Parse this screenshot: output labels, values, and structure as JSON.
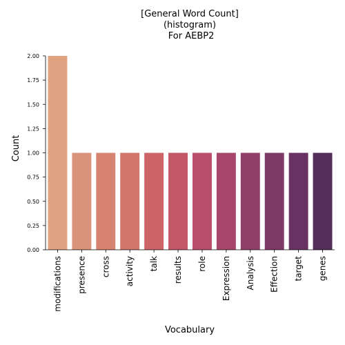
{
  "chart_data": {
    "type": "bar",
    "title_lines": [
      "[General Word Count]",
      "(histogram)",
      " For AEBP2"
    ],
    "xlabel": "Vocabulary",
    "ylabel": "Count",
    "categories": [
      "modifications",
      "presence",
      "cross",
      "activity",
      "talk",
      "results",
      "role",
      "Expression",
      "Analysis",
      "Effection",
      "target",
      "genes"
    ],
    "values": [
      2,
      1,
      1,
      1,
      1,
      1,
      1,
      1,
      1,
      1,
      1,
      1
    ],
    "ylim": [
      0,
      2
    ],
    "yticks": [
      "0.00",
      "0.25",
      "0.50",
      "0.75",
      "1.00",
      "1.25",
      "1.50",
      "1.75",
      "2.00"
    ],
    "colors": [
      "#e0a281",
      "#d9937a",
      "#d68471",
      "#d2766c",
      "#cc6468",
      "#c25767",
      "#b84e6a",
      "#a6466b",
      "#904068",
      "#7d3a67",
      "#683362",
      "#552e5b"
    ],
    "grid": false,
    "legend": "none"
  }
}
